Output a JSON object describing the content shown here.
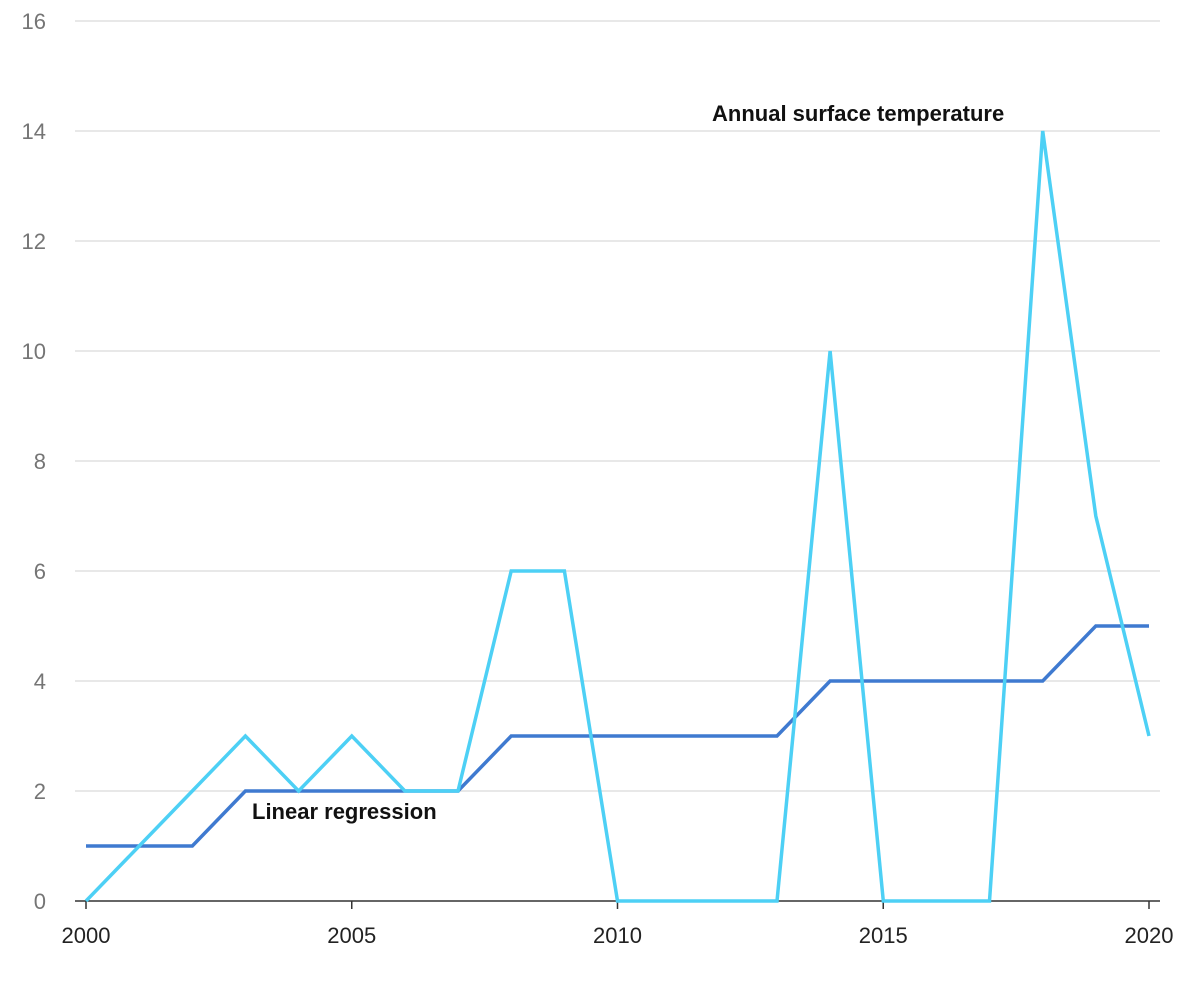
{
  "chart_data": {
    "type": "line",
    "x": [
      2000,
      2001,
      2002,
      2003,
      2004,
      2005,
      2006,
      2007,
      2008,
      2009,
      2010,
      2011,
      2012,
      2013,
      2014,
      2015,
      2016,
      2017,
      2018,
      2019,
      2020
    ],
    "xlim": [
      2000,
      2020
    ],
    "ylim": [
      0,
      16
    ],
    "x_ticks": [
      "2000",
      "2005",
      "2010",
      "2015",
      "2020"
    ],
    "y_ticks": [
      "0",
      "2",
      "4",
      "6",
      "8",
      "10",
      "12",
      "14",
      "16"
    ],
    "grid": true,
    "series": [
      {
        "name": "Annual surface temperature",
        "color": "#4dd0f5",
        "values": [
          0,
          1,
          2,
          3,
          2,
          3,
          2,
          2,
          6,
          6,
          0,
          0,
          0,
          0,
          10,
          0,
          0,
          0,
          14,
          7,
          3
        ]
      },
      {
        "name": "Linear regression",
        "color": "#3f7ad0",
        "values": [
          1,
          1,
          1,
          2,
          2,
          2,
          2,
          2,
          3,
          3,
          3,
          3,
          3,
          3,
          4,
          4,
          4,
          4,
          4,
          5,
          5
        ]
      }
    ],
    "annotations": [
      {
        "series": 0,
        "text": "Annual surface temperature"
      },
      {
        "series": 1,
        "text": "Linear regression"
      }
    ]
  }
}
